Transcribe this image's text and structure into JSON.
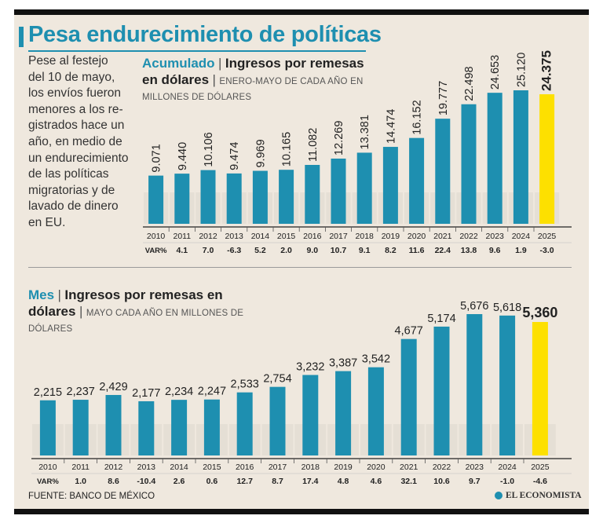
{
  "title": "Pesa endurecimiento de políticas",
  "intro_lines": [
    "Pese al festejo",
    "del 10 de mayo,",
    "los envíos fueron",
    "menores a los re-",
    "gistrados hace un",
    "año, en medio de",
    "un endurecimiento",
    "de las políticas",
    "migratorias y de",
    "lavado de dinero",
    "en EU."
  ],
  "source": "FUENTE: BANCO DE MÉXICO",
  "brand": "EL ECONOMISTA",
  "colors": {
    "bar": "#1e8fb0",
    "highlight": "#fde000",
    "accent": "#1e8fb0",
    "background": "#efe8de"
  },
  "chart_data": [
    {
      "type": "bar",
      "header_blue": "Acumulado",
      "header_sep": "|",
      "header_bold_1": "Ingresos por remesas",
      "header_bold_2": "en dólares",
      "header_sub_1": "ENERO-MAYO DE CADA AÑO EN",
      "header_sub_2": "MILLONES DE DÓLARES",
      "var_label": "VAR%",
      "categories": [
        "2010",
        "2011",
        "2012",
        "2013",
        "2014",
        "2015",
        "2016",
        "2017",
        "2018",
        "2019",
        "2020",
        "2021",
        "2022",
        "2023",
        "2024",
        "2025"
      ],
      "values": [
        9071,
        9440,
        10106,
        9474,
        9969,
        10165,
        11082,
        12269,
        13381,
        14474,
        16152,
        19777,
        22498,
        24653,
        25120,
        24375
      ],
      "value_labels": [
        "9.071",
        "9.440",
        "10.106",
        "9.474",
        "9.969",
        "10.165",
        "11.082",
        "12.269",
        "13.381",
        "14.474",
        "16.152",
        "19.777",
        "22.498",
        "24.653",
        "25.120",
        "24.375"
      ],
      "var": [
        "4.1",
        "7.0",
        "-6.3",
        "5.2",
        "2.0",
        "9.0",
        "10.7",
        "9.1",
        "8.2",
        "11.6",
        "22.4",
        "13.8",
        "9.6",
        "1.9",
        "-3.0"
      ],
      "highlight_index": 15
    },
    {
      "type": "bar",
      "header_blue": "Mes",
      "header_sep": "|",
      "header_bold_1": "Ingresos por remesas en",
      "header_bold_2": "dólares",
      "header_sub_1": "MAYO CADA AÑO EN MILLONES DE",
      "header_sub_2": "DÓLARES",
      "var_label": "VAR%",
      "categories": [
        "2010",
        "2011",
        "2012",
        "2013",
        "2014",
        "2015",
        "2016",
        "2017",
        "2018",
        "2019",
        "2020",
        "2021",
        "2022",
        "2023",
        "2024",
        "2025"
      ],
      "values": [
        2215,
        2237,
        2429,
        2177,
        2234,
        2247,
        2533,
        2754,
        3232,
        3387,
        3542,
        4677,
        5174,
        5676,
        5618,
        5360
      ],
      "value_labels": [
        "2,215",
        "2,237",
        "2,429",
        "2,177",
        "2,234",
        "2,247",
        "2,533",
        "2,754",
        "3,232",
        "3,387",
        "3,542",
        "4,677",
        "5,174",
        "5,676",
        "5,618",
        "5,360"
      ],
      "var": [
        "1.0",
        "8.6",
        "-10.4",
        "2.6",
        "0.6",
        "12.7",
        "8.7",
        "17.4",
        "4.8",
        "4.6",
        "32.1",
        "10.6",
        "9.7",
        "-1.0",
        "-4.6"
      ],
      "highlight_index": 15
    }
  ]
}
